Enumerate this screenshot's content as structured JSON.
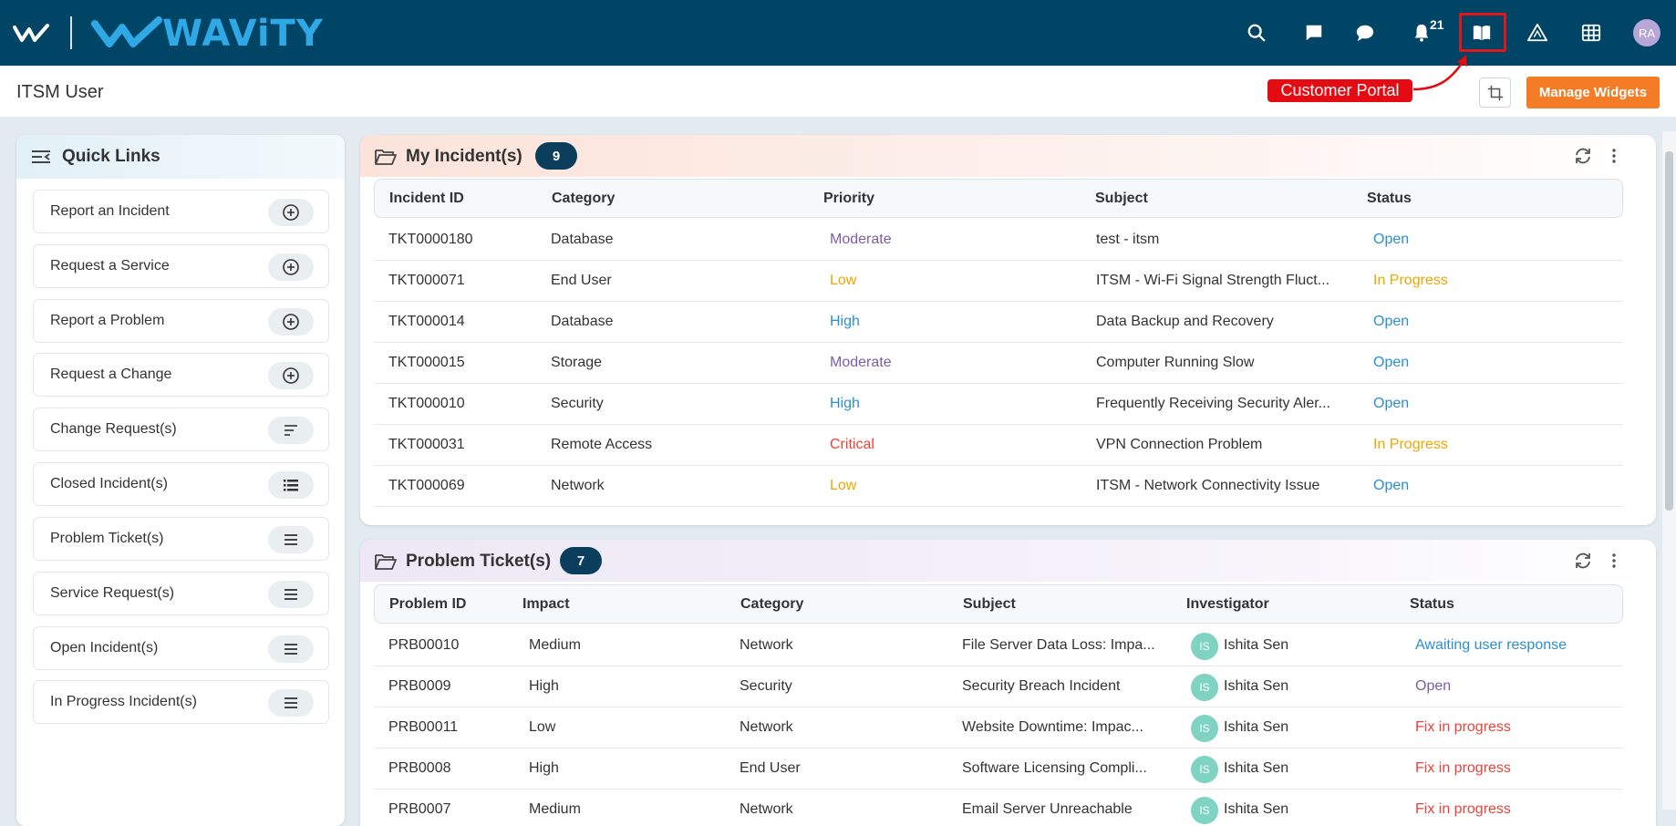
{
  "brand": {
    "name": "WAViTY"
  },
  "topbar": {
    "icons": [
      "search-icon",
      "message-square-icon",
      "chat-bubble-icon",
      "bell-icon",
      "book-open-icon",
      "triangle-alert-icon",
      "grid-icon"
    ],
    "notification_count": "21",
    "avatar_initials": "RA"
  },
  "header": {
    "title": "ITSM User",
    "callout_label": "Customer Portal",
    "manage_widgets_label": "Manage Widgets"
  },
  "quick_links": {
    "title": "Quick Links",
    "items": [
      {
        "label": "Report an Incident",
        "icon": "plus-circle-icon"
      },
      {
        "label": "Request a Service",
        "icon": "plus-circle-icon"
      },
      {
        "label": "Report a Problem",
        "icon": "plus-circle-icon"
      },
      {
        "label": "Request a Change",
        "icon": "plus-circle-icon"
      },
      {
        "label": "Change Request(s)",
        "icon": "sort-lines-icon"
      },
      {
        "label": "Closed Incident(s)",
        "icon": "list-icon"
      },
      {
        "label": "Problem Ticket(s)",
        "icon": "menu-icon"
      },
      {
        "label": "Service Request(s)",
        "icon": "menu-icon"
      },
      {
        "label": "Open Incident(s)",
        "icon": "menu-icon"
      },
      {
        "label": "In Progress Incident(s)",
        "icon": "menu-icon"
      }
    ]
  },
  "incidents": {
    "title": "My Incident(s)",
    "count": "9",
    "columns": [
      "Incident ID",
      "Category",
      "Priority",
      "Subject",
      "Status"
    ],
    "rows": [
      [
        "TKT0000180",
        "Database",
        "Moderate",
        "test - itsm",
        "Open"
      ],
      [
        "TKT000071",
        "End User",
        "Low",
        "ITSM - Wi-Fi Signal Strength Fluct...",
        "In Progress"
      ],
      [
        "TKT000014",
        "Database",
        "High",
        "Data Backup and Recovery",
        "Open"
      ],
      [
        "TKT000015",
        "Storage",
        "Moderate",
        "Computer Running Slow",
        "Open"
      ],
      [
        "TKT000010",
        "Security",
        "High",
        "Frequently Receiving Security Aler...",
        "Open"
      ],
      [
        "TKT000031",
        "Remote Access",
        "Critical",
        "VPN Connection Problem",
        "In Progress"
      ],
      [
        "TKT000069",
        "Network",
        "Low",
        "ITSM - Network Connectivity Issue",
        "Open"
      ]
    ]
  },
  "problems": {
    "title": "Problem Ticket(s)",
    "count": "7",
    "columns": [
      "Problem ID",
      "Impact",
      "Category",
      "Subject",
      "Investigator",
      "Status"
    ],
    "rows": [
      [
        "PRB00010",
        "Medium",
        "Network",
        "File Server Data Loss: Impa...",
        "IS",
        "Ishita Sen",
        "Awaiting user response"
      ],
      [
        "PRB0009",
        "High",
        "Security",
        "Security Breach Incident",
        "IS",
        "Ishita Sen",
        "Open"
      ],
      [
        "PRB00011",
        "Low",
        "Network",
        "Website Downtime: Impac...",
        "IS",
        "Ishita Sen",
        "Fix in progress"
      ],
      [
        "PRB0008",
        "High",
        "End User",
        "Software Licensing Compli...",
        "IS",
        "Ishita Sen",
        "Fix in progress"
      ],
      [
        "PRB0007",
        "Medium",
        "Network",
        "Email Server Unreachable",
        "IS",
        "Ishita Sen",
        "Fix in progress"
      ]
    ]
  },
  "colors": {
    "topbar": "#004466",
    "brand_blue": "#2fa8e6",
    "accent_orange": "#f57c26",
    "priority_moderate": "#7b5ea7",
    "priority_low": "#f0a500",
    "priority_high": "#2a8fd1",
    "priority_critical": "#e8433a",
    "status_open": "#2a8fd1",
    "status_in_progress": "#f0a500",
    "status_fix": "#e8433a",
    "status_open_problem": "#7b5ea7"
  }
}
